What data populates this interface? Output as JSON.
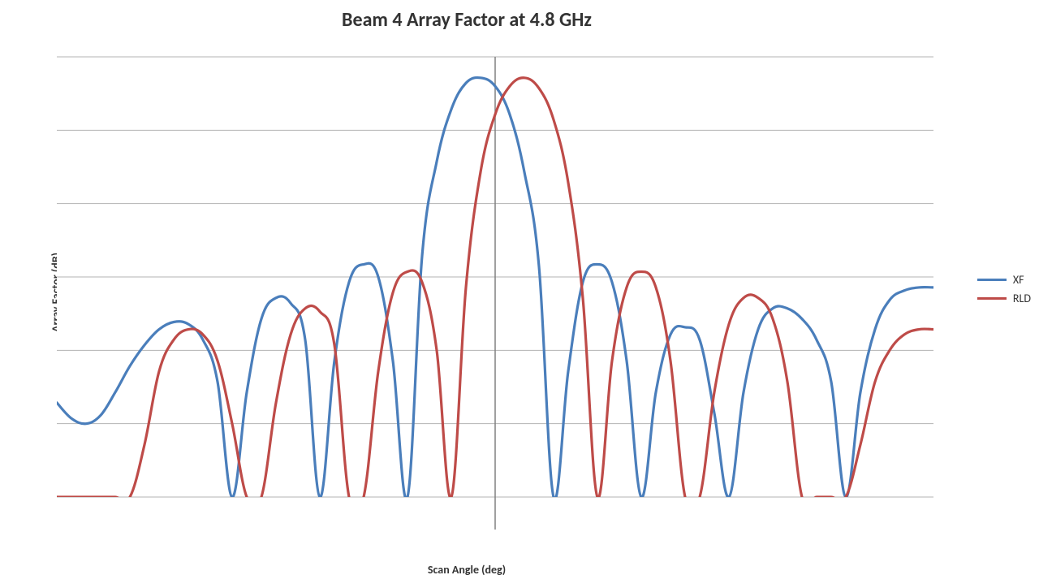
{
  "chart": {
    "type": "line",
    "title": "Beam 4 Array Factor at 4.8 GHz",
    "title_fontsize": 24,
    "ylabel": "Array Factor (dB)",
    "xlabel": "Scan Angle (deg)",
    "label_fontsize": 14,
    "background_color": "#ffffff",
    "grid_color": "#b3b3b3",
    "axis_color": "#808080",
    "xlim": [
      -90,
      90
    ],
    "ylim": [
      -40,
      2
    ],
    "ytick_step": 7,
    "xzero_line": true,
    "line_width": 3.2,
    "series": [
      {
        "name": "XF",
        "color": "#4a7ebb",
        "x": [
          -90,
          -87,
          -84,
          -81,
          -78,
          -75,
          -72,
          -69,
          -66,
          -63,
          -60,
          -57,
          -54,
          -51,
          -48,
          -45,
          -42,
          -39,
          -36,
          -33,
          -30,
          -27,
          -24,
          -21,
          -18,
          -15,
          -12,
          -9,
          -6,
          -3,
          0,
          3,
          6,
          9,
          12,
          15,
          18,
          21,
          24,
          27,
          30,
          33,
          36,
          39,
          42,
          45,
          48,
          51,
          54,
          57,
          60,
          63,
          66,
          69,
          72,
          75,
          78,
          81,
          84,
          87,
          90
        ],
        "y": [
          -31,
          -32.5,
          -33,
          -32.2,
          -30,
          -27.5,
          -25.5,
          -24,
          -23.3,
          -23.5,
          -25,
          -29,
          -40,
          -30,
          -23,
          -21,
          -21.5,
          -25,
          -40,
          -27,
          -19.5,
          -17.8,
          -19,
          -27,
          -40,
          -17,
          -8,
          -3,
          -0.5,
          0,
          -0.8,
          -3.5,
          -9,
          -18,
          -40,
          -28,
          -19.5,
          -17.8,
          -19.5,
          -27,
          -40,
          -30,
          -24.5,
          -23.8,
          -25,
          -32,
          -40,
          -30,
          -24,
          -22,
          -22,
          -23,
          -25,
          -29,
          -40,
          -30,
          -24,
          -21.2,
          -20.3,
          -20,
          -20
        ]
      },
      {
        "name": "RLD",
        "color": "#be4b48",
        "x": [
          -90,
          -87,
          -84,
          -81,
          -78,
          -75,
          -72,
          -69,
          -66,
          -63,
          -60,
          -57,
          -54,
          -51,
          -48,
          -45,
          -42,
          -39,
          -36,
          -33,
          -30,
          -27,
          -24,
          -21,
          -18,
          -15,
          -12,
          -9,
          -6,
          -3,
          0,
          3,
          6,
          9,
          12,
          15,
          18,
          21,
          24,
          27,
          30,
          33,
          36,
          39,
          42,
          45,
          48,
          51,
          54,
          57,
          60,
          63,
          66,
          69,
          72,
          75,
          78,
          81,
          84,
          87,
          90
        ],
        "y": [
          -40,
          -40,
          -40,
          -40,
          -40,
          -40,
          -35,
          -28,
          -25,
          -24,
          -24.5,
          -27,
          -33,
          -40,
          -40,
          -31,
          -24.5,
          -22,
          -22.3,
          -25.5,
          -40,
          -40,
          -28,
          -20.5,
          -18.5,
          -19.5,
          -26,
          -40,
          -20,
          -9,
          -3.5,
          -0.8,
          0,
          -1,
          -4,
          -10,
          -21,
          -40,
          -27,
          -20,
          -18.5,
          -20,
          -27,
          -40,
          -40,
          -30,
          -23.5,
          -21,
          -21,
          -23,
          -29,
          -40,
          -40,
          -40,
          -40,
          -35,
          -29,
          -26,
          -24.5,
          -24,
          -24
        ]
      }
    ],
    "legend": {
      "position": "right",
      "items": [
        "XF",
        "RLD"
      ],
      "fontsize": 14
    }
  }
}
